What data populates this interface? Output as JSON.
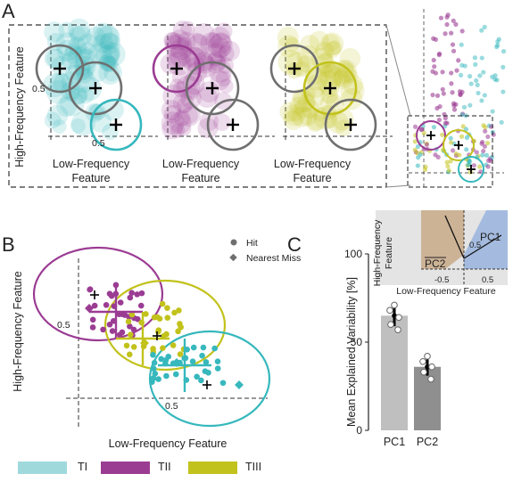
{
  "panels": {
    "a": "A",
    "b": "B",
    "c": "C"
  },
  "panel_a": {
    "ylabel": "High-Frequency Feature",
    "xlabel_line1": "Low-Frequency",
    "xlabel_line2": "Feature",
    "tick_y": "0.5",
    "tick_x": "0.5"
  },
  "panel_b": {
    "ylabel": "High-Frequency Feature",
    "xlabel": "Low-Frequency Feature",
    "tick_y": "0.5",
    "tick_x": "0.5",
    "legend_hit": "Hit",
    "legend_miss": "Nearest Miss"
  },
  "bottom_legend": [
    {
      "label": "TI",
      "color": "#36b8bd"
    },
    {
      "label": "TII",
      "color": "#9b3c93"
    },
    {
      "label": "TIII",
      "color": "#c2c21c"
    }
  ],
  "colors": {
    "ti": "#36b8bd",
    "tii": "#9b3c93",
    "tiii": "#c2c21c",
    "gray": "#6f6f6f"
  },
  "chart_data": {
    "type": "bar",
    "categories": [
      "PC1",
      "PC2"
    ],
    "values": [
      65,
      36
    ],
    "errors": [
      6,
      5
    ],
    "points": [
      [
        71,
        68,
        64,
        60,
        57
      ],
      [
        42,
        39,
        36,
        33,
        29
      ]
    ],
    "ylabel": "Mean Explained Variability [%]",
    "ylim": [
      0,
      100
    ],
    "yticks": [
      "0",
      "50",
      "100"
    ],
    "bar_colors": [
      "#bfbfbf",
      "#8f8f8f"
    ],
    "inset": {
      "ylabel_line1": "High-Frequency",
      "ylabel_line2": "Feature",
      "xlabel": "Low-Frequency Feature",
      "tick_neg": "-0.5",
      "tick_pos": "0.5",
      "tick_y": "0.5",
      "label_pc1": "PC1",
      "label_pc2": "PC2"
    }
  }
}
